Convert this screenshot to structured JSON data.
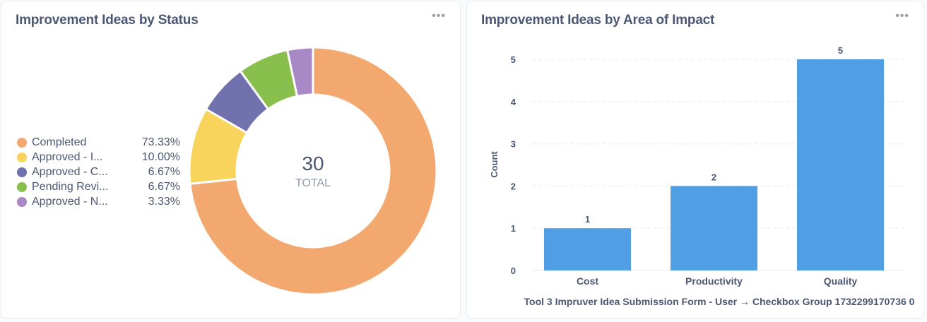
{
  "left_card": {
    "title": "Improvement Ideas by Status",
    "menu_icon": "ellipsis-icon",
    "center_value": "30",
    "center_label": "TOTAL",
    "legend": [
      {
        "label": "Completed",
        "value": "73.33%",
        "color": "#F2A86F"
      },
      {
        "label": "Approved - I...",
        "value": "10.00%",
        "color": "#F9D45C"
      },
      {
        "label": "Approved - C...",
        "value": "6.67%",
        "color": "#7172AD"
      },
      {
        "label": "Pending Revi...",
        "value": "6.67%",
        "color": "#88BF4D"
      },
      {
        "label": "Approved - N...",
        "value": "3.33%",
        "color": "#A989C5"
      }
    ]
  },
  "right_card": {
    "title": "Improvement Ideas by Area of Impact",
    "menu_icon": "ellipsis-icon",
    "ylabel": "Count",
    "xlabel": "Tool 3 Impruver Idea Submission Form - User → Checkbox Group 1732299170736 0",
    "y_ticks": [
      "0",
      "1",
      "2",
      "3",
      "4",
      "5"
    ],
    "categories": [
      "Cost",
      "Productivity",
      "Quality"
    ],
    "value_labels": [
      "1",
      "2",
      "5"
    ],
    "bar_color": "#509EE3"
  },
  "chart_data": [
    {
      "type": "pie",
      "title": "Improvement Ideas by Status",
      "total": 30,
      "total_label": "TOTAL",
      "categories": [
        "Completed",
        "Approved - I...",
        "Approved - C...",
        "Pending Revi...",
        "Approved - N..."
      ],
      "values": [
        22,
        3,
        2,
        2,
        1
      ],
      "percentages": [
        73.33,
        10.0,
        6.67,
        6.67,
        3.33
      ],
      "colors": [
        "#F2A86F",
        "#F9D45C",
        "#7172AD",
        "#88BF4D",
        "#A989C5"
      ],
      "legend_position": "left",
      "donut": true
    },
    {
      "type": "bar",
      "title": "Improvement Ideas by Area of Impact",
      "categories": [
        "Cost",
        "Productivity",
        "Quality"
      ],
      "values": [
        1,
        2,
        5
      ],
      "xlabel": "Tool 3 Impruver Idea Submission Form - User → Checkbox Group 1732299170736 0",
      "ylabel": "Count",
      "ylim": [
        0,
        5
      ],
      "grid": true,
      "color": "#509EE3"
    }
  ]
}
